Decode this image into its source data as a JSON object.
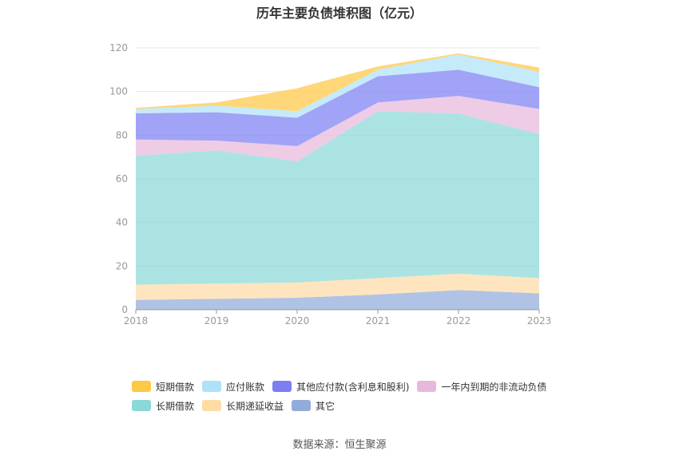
{
  "title": "历年主要负债堆积图（亿元）",
  "source": "数据来源：恒生聚源",
  "chart_data": {
    "type": "area",
    "stacked": true,
    "categories": [
      "2018",
      "2019",
      "2020",
      "2021",
      "2022",
      "2023"
    ],
    "ylim": [
      0,
      120
    ],
    "yticks": [
      0,
      20,
      40,
      60,
      80,
      100,
      120
    ],
    "grid": true,
    "legend_position": "bottom",
    "series": [
      {
        "name": "其它",
        "color": "#92acd9",
        "values": [
          4.5,
          5.0,
          5.5,
          7.0,
          9.0,
          7.5
        ]
      },
      {
        "name": "长期递延收益",
        "color": "#ffdba6",
        "values": [
          7.0,
          7.0,
          7.0,
          7.5,
          7.5,
          7.0
        ]
      },
      {
        "name": "长期借款",
        "color": "#8ad8d8",
        "values": [
          59.0,
          61.0,
          55.5,
          76.5,
          73.5,
          66.0
        ]
      },
      {
        "name": "一年内到期的非流动负债",
        "color": "#e8b8dc",
        "values": [
          7.5,
          4.5,
          7.0,
          4.0,
          8.0,
          11.5
        ]
      },
      {
        "name": "其他应付款(含利息和股利)",
        "color": "#7b7ff2",
        "values": [
          12.0,
          13.0,
          13.0,
          12.0,
          12.0,
          10.0
        ]
      },
      {
        "name": "应付账款",
        "color": "#aee2f8",
        "values": [
          2.0,
          3.0,
          3.0,
          3.0,
          7.0,
          7.0
        ]
      },
      {
        "name": "短期借款",
        "color": "#ffc845",
        "values": [
          0.5,
          1.5,
          10.5,
          1.5,
          0.5,
          2.0
        ]
      }
    ]
  },
  "legend": {
    "row1": [
      {
        "label": "短期借款",
        "color": "#ffc845"
      },
      {
        "label": "应付账款",
        "color": "#aee2f8"
      },
      {
        "label": "其他应付款(含利息和股利)",
        "color": "#7b7ff2"
      },
      {
        "label": "一年内到期的非流动负债",
        "color": "#e8b8dc"
      }
    ],
    "row2": [
      {
        "label": "长期借款",
        "color": "#8ad8d8"
      },
      {
        "label": "长期递延收益",
        "color": "#ffdba6"
      },
      {
        "label": "其它",
        "color": "#92acd9"
      }
    ]
  }
}
